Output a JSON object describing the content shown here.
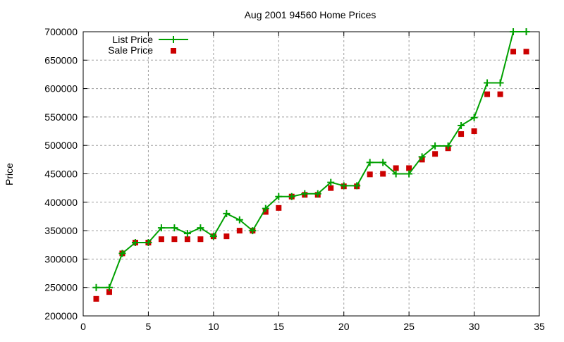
{
  "chart_data": {
    "type": "line",
    "title": "Aug 2001 94560 Home Prices",
    "xlabel": "",
    "ylabel": "Price",
    "xlim": [
      0,
      35
    ],
    "ylim": [
      200000,
      700000
    ],
    "xticks": [
      0,
      5,
      10,
      15,
      20,
      25,
      30,
      35
    ],
    "yticks": [
      200000,
      250000,
      300000,
      350000,
      400000,
      450000,
      500000,
      550000,
      600000,
      650000,
      700000
    ],
    "grid": true,
    "legend_placement": "top-left",
    "x": [
      1,
      2,
      3,
      4,
      5,
      6,
      7,
      8,
      9,
      10,
      11,
      12,
      13,
      14,
      15,
      16,
      17,
      18,
      19,
      20,
      21,
      22,
      23,
      24,
      25,
      26,
      27,
      28,
      29,
      30,
      31,
      32,
      33,
      34
    ],
    "series": [
      {
        "name": "List Price",
        "style": "linespoints",
        "color": "#00a000",
        "values": [
          250000,
          250000,
          310000,
          329000,
          329000,
          355000,
          355000,
          345000,
          355000,
          340000,
          380000,
          369000,
          350000,
          389000,
          410000,
          410000,
          415000,
          415000,
          435000,
          429000,
          429000,
          470000,
          470000,
          450000,
          450000,
          480000,
          499000,
          499000,
          535000,
          549000,
          610000,
          610000,
          700000,
          700000
        ]
      },
      {
        "name": "Sale Price",
        "style": "points",
        "color": "#cc0000",
        "values": [
          230000,
          242000,
          310000,
          329000,
          329000,
          335000,
          335000,
          335000,
          335000,
          340000,
          340000,
          350000,
          350000,
          383000,
          390000,
          410000,
          413000,
          413000,
          425000,
          428000,
          428000,
          449000,
          450000,
          460000,
          460000,
          475000,
          485000,
          495000,
          520000,
          525000,
          590000,
          590000,
          665000,
          665000
        ]
      }
    ]
  }
}
